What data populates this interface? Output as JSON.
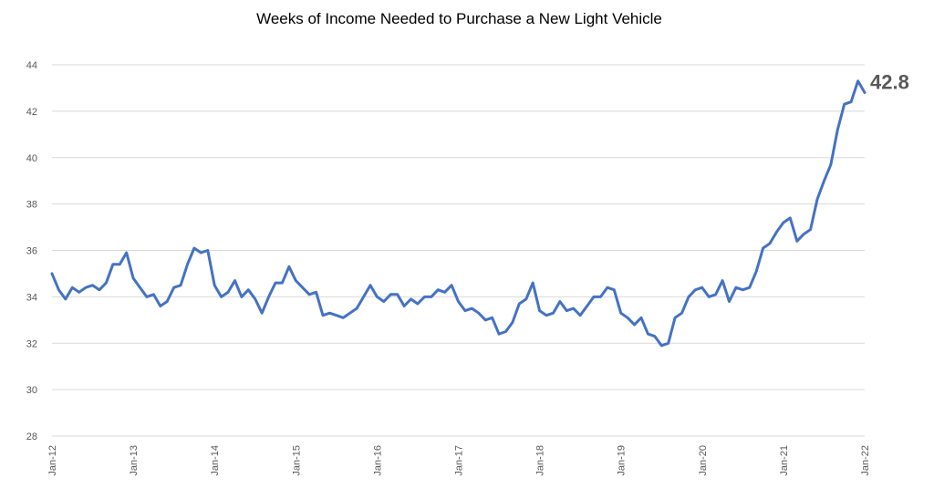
{
  "chart_data": {
    "type": "line",
    "title": "Weeks of Income Needed to Purchase a New Light Vehicle",
    "xlabel": "",
    "ylabel": "",
    "ylim": [
      28,
      44
    ],
    "yticks": [
      "28",
      "30",
      "32",
      "34",
      "36",
      "38",
      "40",
      "42",
      "44"
    ],
    "xticks": [
      "Jan-12",
      "Jan-13",
      "Jan-14",
      "Jan-15",
      "Jan-16",
      "Jan-17",
      "Jan-18",
      "Jan-19",
      "Jan-20",
      "Jan-21",
      "Jan-22"
    ],
    "grid": true,
    "legend": "none",
    "series_color": "#4472C4",
    "end_label": "42.8",
    "series": [
      {
        "start": "Jan-12",
        "frequency": "monthly",
        "values": [
          35.0,
          34.3,
          33.9,
          34.4,
          34.2,
          34.4,
          34.5,
          34.3,
          34.6,
          35.4,
          35.4,
          35.9,
          34.8,
          34.4,
          34.0,
          34.1,
          33.6,
          33.8,
          34.4,
          34.5,
          35.4,
          36.1,
          35.9,
          36.0,
          34.5,
          34.0,
          34.2,
          34.7,
          34.0,
          34.3,
          33.9,
          33.3,
          34.0,
          34.6,
          34.6,
          35.3,
          34.7,
          34.4,
          34.1,
          34.2,
          33.2,
          33.3,
          33.2,
          33.1,
          33.3,
          33.5,
          34.0,
          34.5,
          34.0,
          33.8,
          34.1,
          34.1,
          33.6,
          33.9,
          33.7,
          34.0,
          34.0,
          34.3,
          34.2,
          34.5,
          33.8,
          33.4,
          33.5,
          33.3,
          33.0,
          33.1,
          32.4,
          32.5,
          32.9,
          33.7,
          33.9,
          34.6,
          33.4,
          33.2,
          33.3,
          33.8,
          33.4,
          33.5,
          33.2,
          33.6,
          34.0,
          34.0,
          34.4,
          34.3,
          33.3,
          33.1,
          32.8,
          33.1,
          32.4,
          32.3,
          31.9,
          32.0,
          33.1,
          33.3,
          34.0,
          34.3,
          34.4,
          34.0,
          34.1,
          34.7,
          33.8,
          34.4,
          34.3,
          34.4,
          35.1,
          36.1,
          36.3,
          36.8,
          37.2,
          37.4,
          36.4,
          36.7,
          36.9,
          38.2,
          39.0,
          39.7,
          41.2,
          42.3,
          42.4,
          43.3,
          42.8
        ]
      }
    ]
  }
}
